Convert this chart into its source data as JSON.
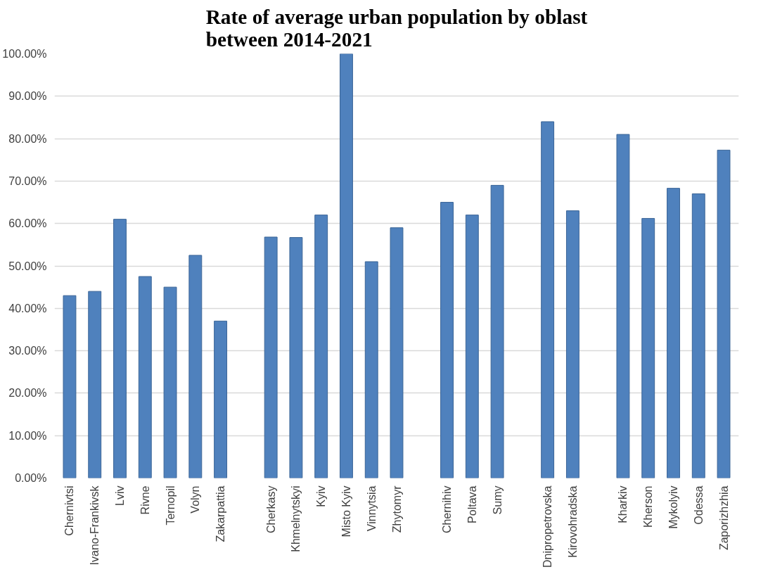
{
  "chart_data": {
    "type": "bar",
    "title": "Rate of average urban population by oblast between 2014-2021",
    "categories": [
      "Chernivtsi",
      "Ivano-Frankivsk",
      "Lviv",
      "Rivne",
      "Ternopil",
      "Volyn",
      "Zakarpattia",
      null,
      "Cherkasy",
      "Khmelnytskyi",
      "Kyiv",
      "Misto Kyiv",
      "Vinnytsia",
      "Zhytomyr",
      null,
      "Chernihiv",
      "Poltava",
      "Sumy",
      null,
      "Dnipropetrovska",
      "Kirovohradska",
      null,
      "Kharkiv",
      "Kherson",
      "Mykolyiv",
      "Odessa",
      "Zaporizhzhia"
    ],
    "values": [
      43,
      44,
      61,
      47.5,
      45,
      52.5,
      37,
      null,
      56.8,
      56.7,
      62,
      100,
      51,
      59,
      null,
      65,
      62,
      69,
      null,
      84,
      63,
      null,
      81,
      61.2,
      68.3,
      67,
      77.3
    ],
    "color": "#4f81bd",
    "ylim": [
      0,
      100
    ],
    "yticks": [
      {
        "value": 0,
        "label": "0.00%"
      },
      {
        "value": 10,
        "label": "10.00%"
      },
      {
        "value": 20,
        "label": "20.00%"
      },
      {
        "value": 30,
        "label": "30.00%"
      },
      {
        "value": 40,
        "label": "40.00%"
      },
      {
        "value": 50,
        "label": "50.00%"
      },
      {
        "value": 60,
        "label": "60.00%"
      },
      {
        "value": 70,
        "label": "70.00%"
      },
      {
        "value": 80,
        "label": "80.00%"
      },
      {
        "value": 90,
        "label": "90.00%"
      },
      {
        "value": 100,
        "label": "100.00%"
      }
    ],
    "grid": "y"
  }
}
